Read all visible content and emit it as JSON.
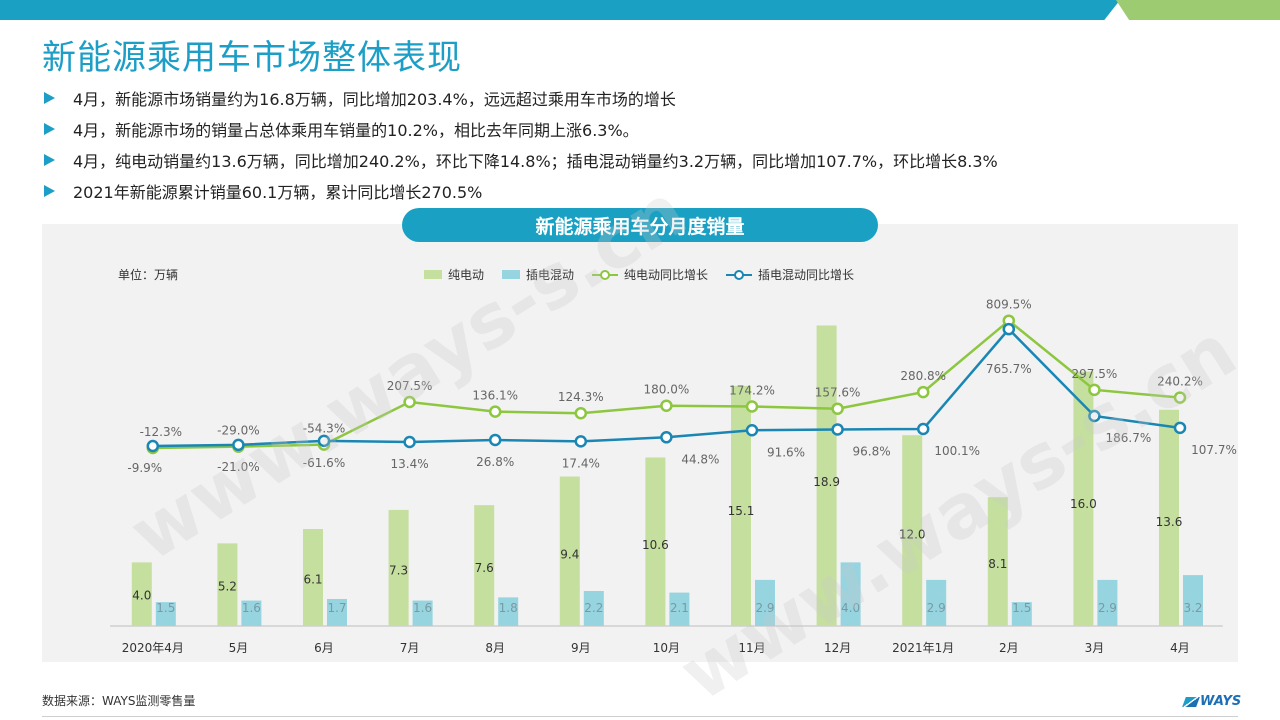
{
  "page_title": "新能源乘用车市场整体表现",
  "bullets": [
    "4月，新能源市场销量约为16.8万辆，同比增加203.4%，远远超过乘用车市场的增长",
    "4月，新能源市场的销量占总体乘用车销量的10.2%，相比去年同期上涨6.3%。",
    "4月，纯电动销量约13.6万辆，同比增加240.2%，环比下降14.8%；插电混动销量约3.2万辆，同比增加107.7%，环比增长8.3%",
    "2021年新能源累计销量60.1万辆，累计同比增长270.5%"
  ],
  "source": "数据来源：WAYS监测零售量",
  "logo": "WAYS",
  "watermark": "www.ways-s.cn",
  "colors": {
    "brand": "#1aa0c3",
    "bev_bar": "#c5df9f",
    "phev_bar": "#96d4e0",
    "bev_line": "#8dc63f",
    "phev_line": "#1a86b3"
  },
  "chart_data": {
    "type": "bar",
    "title": "新能源乘用车分月度销量",
    "unit": "单位：万辆",
    "categories": [
      "2020年4月",
      "5月",
      "6月",
      "7月",
      "8月",
      "9月",
      "10月",
      "11月",
      "12月",
      "2021年1月",
      "2月",
      "3月",
      "4月"
    ],
    "series": [
      {
        "name": "纯电动",
        "type": "bar",
        "values": [
          4.0,
          5.2,
          6.1,
          7.3,
          7.6,
          9.4,
          10.6,
          15.1,
          18.9,
          12.0,
          8.1,
          16.0,
          13.6
        ],
        "labels": [
          "4.0",
          "5.2",
          "6.1",
          "7.3",
          "7.6",
          "9.4",
          "10.6",
          "15.1",
          "18.9",
          "12.0",
          "8.1",
          "16.0",
          "13.6"
        ]
      },
      {
        "name": "插电混动",
        "type": "bar",
        "values": [
          1.5,
          1.6,
          1.7,
          1.6,
          1.8,
          2.2,
          2.1,
          2.9,
          4.0,
          2.9,
          1.5,
          2.9,
          3.2
        ],
        "labels": [
          "1.5",
          "1.6",
          "1.7",
          "1.6",
          "1.8",
          "2.2",
          "2.1",
          "2.9",
          "4.0",
          "2.9",
          "1.5",
          "2.9",
          "3.2"
        ]
      },
      {
        "name": "纯电动同比增长",
        "type": "line",
        "values": [
          -12.3,
          -29.0,
          -54.3,
          207.5,
          136.1,
          124.3,
          180.0,
          174.2,
          157.6,
          280.8,
          809.5,
          297.5,
          240.2
        ],
        "labels": [
          "-12.3%",
          "-29.0%",
          "-54.3%",
          "207.5%",
          "136.1%",
          "124.3%",
          "180.0%",
          "174.2%",
          "157.6%",
          "280.8%",
          "809.5%",
          "297.5%",
          "240.2%"
        ]
      },
      {
        "name": "插电混动同比增长",
        "type": "line",
        "values": [
          -9.9,
          -21.0,
          -61.6,
          13.4,
          26.8,
          17.4,
          44.8,
          91.6,
          96.8,
          100.1,
          765.7,
          186.7,
          107.7
        ],
        "labels": [
          "-9.9%",
          "-21.0%",
          "-61.6%",
          "13.4%",
          "26.8%",
          "17.4%",
          "44.8%",
          "91.6%",
          "96.8%",
          "100.1%",
          "765.7%",
          "186.7%",
          "107.7%"
        ]
      }
    ],
    "legend": "top",
    "grid": false
  }
}
